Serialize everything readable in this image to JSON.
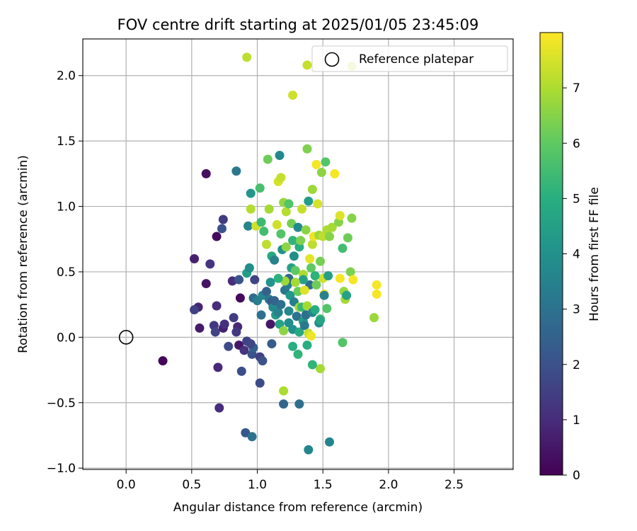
{
  "chart_data": {
    "type": "scatter",
    "title": "FOV centre drift starting at 2025/01/05 23:45:09",
    "xlabel": "Angular distance from reference (arcmin)",
    "ylabel": "Rotation from reference (arcmin)",
    "xlim": [
      -0.33,
      2.95
    ],
    "ylim": [
      -1.01,
      2.28
    ],
    "xticks": [
      0.0,
      0.5,
      1.0,
      1.5,
      2.0,
      2.5
    ],
    "xtick_labels": [
      "0.0",
      "0.5",
      "1.0",
      "1.5",
      "2.0",
      "2.5"
    ],
    "yticks": [
      -1.0,
      -0.5,
      0.0,
      0.5,
      1.0,
      1.5,
      2.0
    ],
    "ytick_labels": [
      "−1.0",
      "−0.5",
      "0.0",
      "0.5",
      "1.0",
      "1.5",
      "2.0"
    ],
    "grid": true,
    "legend": {
      "position": "top-right",
      "entries": [
        {
          "label": "Reference platepar",
          "marker": "open-circle"
        }
      ]
    },
    "reference_point": {
      "x": 0.0,
      "y": 0.0
    },
    "colorbar": {
      "label": "Hours from first FF file",
      "colormap": "viridis",
      "range": [
        0,
        8
      ],
      "ticks": [
        0,
        1,
        2,
        3,
        4,
        5,
        6,
        7
      ],
      "tick_labels": [
        "0",
        "1",
        "2",
        "3",
        "4",
        "5",
        "6",
        "7"
      ]
    },
    "points": [
      {
        "x": 0.28,
        "y": -0.18,
        "c": 0.1
      },
      {
        "x": 0.61,
        "y": 1.25,
        "c": 0.3
      },
      {
        "x": 0.52,
        "y": 0.6,
        "c": 0.7
      },
      {
        "x": 0.61,
        "y": 0.41,
        "c": 0.4
      },
      {
        "x": 0.64,
        "y": 0.56,
        "c": 1.2
      },
      {
        "x": 0.69,
        "y": 0.77,
        "c": 0.2
      },
      {
        "x": 0.74,
        "y": 0.9,
        "c": 1.4
      },
      {
        "x": 0.73,
        "y": 0.83,
        "c": 2.0
      },
      {
        "x": 0.55,
        "y": 0.23,
        "c": 0.8
      },
      {
        "x": 0.52,
        "y": 0.21,
        "c": 1.5
      },
      {
        "x": 0.56,
        "y": 0.07,
        "c": 0.6
      },
      {
        "x": 0.67,
        "y": 0.09,
        "c": 1.3
      },
      {
        "x": 0.69,
        "y": 0.24,
        "c": 1.0
      },
      {
        "x": 0.68,
        "y": 0.04,
        "c": 1.6
      },
      {
        "x": 0.74,
        "y": 0.07,
        "c": 0.7
      },
      {
        "x": 0.75,
        "y": 0.1,
        "c": 1.1
      },
      {
        "x": 0.78,
        "y": -0.07,
        "c": 1.8
      },
      {
        "x": 0.81,
        "y": 0.43,
        "c": 1.0
      },
      {
        "x": 0.82,
        "y": 0.15,
        "c": 1.4
      },
      {
        "x": 0.85,
        "y": 0.08,
        "c": 0.9
      },
      {
        "x": 0.86,
        "y": 0.44,
        "c": 2.1
      },
      {
        "x": 0.86,
        "y": -0.06,
        "c": 0.5
      },
      {
        "x": 0.87,
        "y": 0.3,
        "c": 0.2
      },
      {
        "x": 0.84,
        "y": 0.04,
        "c": 1.3
      },
      {
        "x": 0.7,
        "y": -0.23,
        "c": 0.9
      },
      {
        "x": 0.71,
        "y": -0.54,
        "c": 1.0
      },
      {
        "x": 0.88,
        "y": -0.26,
        "c": 1.9
      },
      {
        "x": 0.9,
        "y": -0.1,
        "c": 1.2
      },
      {
        "x": 0.92,
        "y": -0.03,
        "c": 1.6
      },
      {
        "x": 0.91,
        "y": -0.73,
        "c": 2.2
      },
      {
        "x": 0.96,
        "y": -0.76,
        "c": 3.0
      },
      {
        "x": 0.96,
        "y": -0.13,
        "c": 2.0
      },
      {
        "x": 0.97,
        "y": -0.08,
        "c": 2.4
      },
      {
        "x": 0.95,
        "y": -0.05,
        "c": 1.7
      },
      {
        "x": 1.02,
        "y": -0.35,
        "c": 1.8
      },
      {
        "x": 1.02,
        "y": -0.15,
        "c": 1.5
      },
      {
        "x": 1.04,
        "y": -0.18,
        "c": 2.0
      },
      {
        "x": 1.11,
        "y": -0.05,
        "c": 2.3
      },
      {
        "x": 1.1,
        "y": 0.1,
        "c": 0.5
      },
      {
        "x": 0.98,
        "y": 0.44,
        "c": 1.6
      },
      {
        "x": 0.97,
        "y": 0.3,
        "c": 2.8
      },
      {
        "x": 1.0,
        "y": 0.28,
        "c": 3.4
      },
      {
        "x": 1.03,
        "y": 0.17,
        "c": 3.0
      },
      {
        "x": 1.04,
        "y": 0.32,
        "c": 3.6
      },
      {
        "x": 1.07,
        "y": 0.35,
        "c": 2.5
      },
      {
        "x": 1.09,
        "y": 0.29,
        "c": 3.2
      },
      {
        "x": 1.1,
        "y": 0.42,
        "c": 4.1
      },
      {
        "x": 1.11,
        "y": 0.27,
        "c": 2.2
      },
      {
        "x": 1.12,
        "y": 0.23,
        "c": 3.8
      },
      {
        "x": 1.13,
        "y": 0.28,
        "c": 2.6
      },
      {
        "x": 1.14,
        "y": 0.17,
        "c": 4.3
      },
      {
        "x": 1.16,
        "y": 0.19,
        "c": 3.5
      },
      {
        "x": 1.17,
        "y": 0.1,
        "c": 4.6
      },
      {
        "x": 1.18,
        "y": 0.25,
        "c": 2.9
      },
      {
        "x": 1.2,
        "y": 0.05,
        "c": 6.6
      },
      {
        "x": 1.21,
        "y": 0.36,
        "c": 3.1
      },
      {
        "x": 1.23,
        "y": 0.4,
        "c": 3.3
      },
      {
        "x": 1.24,
        "y": 0.45,
        "c": 2.7
      },
      {
        "x": 1.25,
        "y": 0.32,
        "c": 4.2
      },
      {
        "x": 1.26,
        "y": 0.53,
        "c": 4.5
      },
      {
        "x": 1.24,
        "y": 0.2,
        "c": 3.7
      },
      {
        "x": 1.27,
        "y": 0.06,
        "c": 4.0
      },
      {
        "x": 1.28,
        "y": 0.27,
        "c": 3.4
      },
      {
        "x": 1.3,
        "y": 0.16,
        "c": 3.0
      },
      {
        "x": 1.31,
        "y": 0.35,
        "c": 6.1
      },
      {
        "x": 1.32,
        "y": 0.23,
        "c": 6.8
      },
      {
        "x": 1.32,
        "y": 0.04,
        "c": 4.8
      },
      {
        "x": 1.34,
        "y": 0.23,
        "c": 5.3
      },
      {
        "x": 1.35,
        "y": 0.12,
        "c": 4.4
      },
      {
        "x": 1.36,
        "y": 0.09,
        "c": 3.2
      },
      {
        "x": 1.37,
        "y": 0.17,
        "c": 2.9
      },
      {
        "x": 1.38,
        "y": 0.24,
        "c": 6.9
      },
      {
        "x": 1.39,
        "y": 0.03,
        "c": 7.3
      },
      {
        "x": 1.4,
        "y": 0.4,
        "c": 2.8
      },
      {
        "x": 1.42,
        "y": 0.19,
        "c": 3.6
      },
      {
        "x": 1.44,
        "y": 0.21,
        "c": 4.9
      },
      {
        "x": 1.47,
        "y": 0.11,
        "c": 3.9
      },
      {
        "x": 1.48,
        "y": 0.14,
        "c": 5.6
      },
      {
        "x": 1.48,
        "y": 0.13,
        "c": 4.7
      },
      {
        "x": 1.5,
        "y": 0.45,
        "c": 7.4
      },
      {
        "x": 1.51,
        "y": 0.33,
        "c": 7.8
      },
      {
        "x": 1.51,
        "y": 0.32,
        "c": 3.5
      },
      {
        "x": 1.54,
        "y": 0.47,
        "c": 4.5
      },
      {
        "x": 1.53,
        "y": 0.22,
        "c": 5.8
      },
      {
        "x": 1.63,
        "y": 0.45,
        "c": 7.9
      },
      {
        "x": 1.66,
        "y": 0.35,
        "c": 6.7
      },
      {
        "x": 1.67,
        "y": 0.29,
        "c": 6.9
      },
      {
        "x": 1.68,
        "y": 0.32,
        "c": 4.6
      },
      {
        "x": 1.71,
        "y": 0.5,
        "c": 6.4
      },
      {
        "x": 1.73,
        "y": 0.44,
        "c": 7.9
      },
      {
        "x": 1.89,
        "y": 0.15,
        "c": 6.8
      },
      {
        "x": 1.91,
        "y": 0.4,
        "c": 7.9
      },
      {
        "x": 1.91,
        "y": 0.33,
        "c": 7.9
      },
      {
        "x": 1.65,
        "y": -0.04,
        "c": 5.8
      },
      {
        "x": 1.48,
        "y": -0.24,
        "c": 6.9
      },
      {
        "x": 1.42,
        "y": -0.21,
        "c": 5.2
      },
      {
        "x": 1.38,
        "y": -0.06,
        "c": 5.0
      },
      {
        "x": 1.31,
        "y": -0.13,
        "c": 5.2
      },
      {
        "x": 1.27,
        "y": -0.07,
        "c": 5.0
      },
      {
        "x": 1.2,
        "y": -0.41,
        "c": 7.0
      },
      {
        "x": 1.2,
        "y": -0.51,
        "c": 2.6
      },
      {
        "x": 1.32,
        "y": -0.51,
        "c": 2.9
      },
      {
        "x": 1.39,
        "y": -0.86,
        "c": 3.6
      },
      {
        "x": 1.55,
        "y": -0.8,
        "c": 3.6
      },
      {
        "x": 0.84,
        "y": 1.27,
        "c": 3.2
      },
      {
        "x": 0.92,
        "y": 0.49,
        "c": 4.4
      },
      {
        "x": 0.93,
        "y": 0.85,
        "c": 3.6
      },
      {
        "x": 0.94,
        "y": 0.53,
        "c": 3.9
      },
      {
        "x": 0.95,
        "y": 1.1,
        "c": 4.2
      },
      {
        "x": 0.95,
        "y": 0.98,
        "c": 7.1
      },
      {
        "x": 0.99,
        "y": 0.85,
        "c": 7.4
      },
      {
        "x": 1.02,
        "y": 1.14,
        "c": 5.6
      },
      {
        "x": 1.03,
        "y": 0.88,
        "c": 5.4
      },
      {
        "x": 1.05,
        "y": 0.81,
        "c": 5.5
      },
      {
        "x": 1.07,
        "y": 0.71,
        "c": 7.2
      },
      {
        "x": 1.08,
        "y": 1.36,
        "c": 6.2
      },
      {
        "x": 1.09,
        "y": 0.98,
        "c": 6.9
      },
      {
        "x": 1.11,
        "y": 0.62,
        "c": 4.8
      },
      {
        "x": 1.13,
        "y": 0.59,
        "c": 3.5
      },
      {
        "x": 1.15,
        "y": 0.86,
        "c": 7.4
      },
      {
        "x": 1.16,
        "y": 1.19,
        "c": 7.5
      },
      {
        "x": 1.17,
        "y": 1.39,
        "c": 3.7
      },
      {
        "x": 1.18,
        "y": 1.22,
        "c": 7.3
      },
      {
        "x": 1.18,
        "y": 0.79,
        "c": 5.8
      },
      {
        "x": 1.19,
        "y": 0.67,
        "c": 4.0
      },
      {
        "x": 1.2,
        "y": 1.03,
        "c": 6.7
      },
      {
        "x": 1.21,
        "y": 0.43,
        "c": 6.8
      },
      {
        "x": 1.22,
        "y": 0.96,
        "c": 7.1
      },
      {
        "x": 1.22,
        "y": 0.69,
        "c": 6.6
      },
      {
        "x": 1.24,
        "y": 1.02,
        "c": 5.8
      },
      {
        "x": 1.26,
        "y": 0.87,
        "c": 6.3
      },
      {
        "x": 1.27,
        "y": 0.74,
        "c": 5.2
      },
      {
        "x": 1.28,
        "y": 0.62,
        "c": 3.9
      },
      {
        "x": 1.29,
        "y": 0.51,
        "c": 6.0
      },
      {
        "x": 1.31,
        "y": 0.84,
        "c": 3.8
      },
      {
        "x": 1.32,
        "y": 0.69,
        "c": 5.0
      },
      {
        "x": 1.33,
        "y": 0.74,
        "c": 6.4
      },
      {
        "x": 1.34,
        "y": 0.98,
        "c": 7.3
      },
      {
        "x": 1.35,
        "y": 0.48,
        "c": 7.0
      },
      {
        "x": 1.36,
        "y": 0.36,
        "c": 7.6
      },
      {
        "x": 1.37,
        "y": 0.82,
        "c": 6.6
      },
      {
        "x": 1.38,
        "y": 1.44,
        "c": 6.4
      },
      {
        "x": 1.39,
        "y": 1.04,
        "c": 4.4
      },
      {
        "x": 1.4,
        "y": 0.6,
        "c": 7.7
      },
      {
        "x": 1.41,
        "y": 0.53,
        "c": 6.0
      },
      {
        "x": 1.42,
        "y": 0.71,
        "c": 7.2
      },
      {
        "x": 1.43,
        "y": 0.77,
        "c": 7.8
      },
      {
        "x": 1.44,
        "y": 0.47,
        "c": 5.1
      },
      {
        "x": 1.45,
        "y": 1.32,
        "c": 7.9
      },
      {
        "x": 1.46,
        "y": 1.02,
        "c": 7.5
      },
      {
        "x": 1.47,
        "y": 0.78,
        "c": 6.8
      },
      {
        "x": 1.48,
        "y": 0.58,
        "c": 6.3
      },
      {
        "x": 1.49,
        "y": 1.26,
        "c": 6.6
      },
      {
        "x": 1.5,
        "y": 0.77,
        "c": 7.2
      },
      {
        "x": 1.52,
        "y": 1.34,
        "c": 5.8
      },
      {
        "x": 1.53,
        "y": 0.82,
        "c": 7.0
      },
      {
        "x": 1.55,
        "y": 0.77,
        "c": 6.5
      },
      {
        "x": 1.57,
        "y": 0.84,
        "c": 6.9
      },
      {
        "x": 1.59,
        "y": 1.25,
        "c": 7.9
      },
      {
        "x": 1.62,
        "y": 0.88,
        "c": 6.5
      },
      {
        "x": 1.63,
        "y": 0.93,
        "c": 7.6
      },
      {
        "x": 1.65,
        "y": 0.68,
        "c": 5.5
      },
      {
        "x": 1.69,
        "y": 0.76,
        "c": 6.2
      },
      {
        "x": 1.72,
        "y": 0.91,
        "c": 6.5
      },
      {
        "x": 1.27,
        "y": 1.85,
        "c": 7.4
      },
      {
        "x": 1.38,
        "y": 2.08,
        "c": 7.3
      },
      {
        "x": 1.72,
        "y": 2.07,
        "c": 7.1
      },
      {
        "x": 0.92,
        "y": 2.14,
        "c": 7.2
      },
      {
        "x": 1.42,
        "y": 1.13,
        "c": 6.8
      },
      {
        "x": 1.35,
        "y": 0.44,
        "c": 4.5
      },
      {
        "x": 1.24,
        "y": 0.11,
        "c": 3.9
      },
      {
        "x": 1.45,
        "y": 0.4,
        "c": 6.2
      },
      {
        "x": 1.41,
        "y": 0.01,
        "c": 7.8
      },
      {
        "x": 1.29,
        "y": 0.42,
        "c": 6.9
      },
      {
        "x": 1.16,
        "y": 0.45,
        "c": 5.1
      }
    ]
  }
}
